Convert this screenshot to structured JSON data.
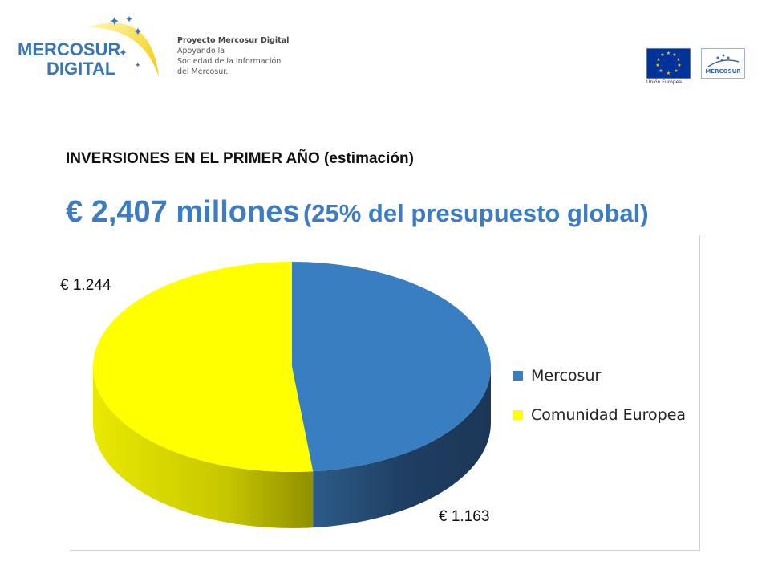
{
  "header": {
    "logo_line1": "MERCOSUR",
    "logo_line2": "DIGITAL",
    "tagline": [
      "Proyecto Mercosur Digital",
      "Apoyando la",
      "Sociedad de la Información",
      "del Mercosur."
    ],
    "eu_caption": "Unión Europea",
    "mercosur_badge": "MERCOSUR"
  },
  "slide": {
    "subtitle": "INVERSIONES EN EL PRIMER AÑO (estimación)",
    "headline_main": "€ 2,407 millones",
    "headline_note": "(25% del presupuesto global)"
  },
  "colors": {
    "mercosur": "#3a7ec2",
    "comunidad_europea": "#ffff00",
    "headline": "#3c7cc4"
  },
  "chart_data": {
    "type": "pie",
    "style": "3d",
    "categories": [
      "Mercosur",
      "Comunidad Europea"
    ],
    "values": [
      1163,
      1244
    ],
    "data_labels": [
      "€ 1.163",
      "€ 1.244"
    ],
    "legend_position": "right",
    "colors": [
      "#3a7ec2",
      "#ffff00"
    ]
  }
}
